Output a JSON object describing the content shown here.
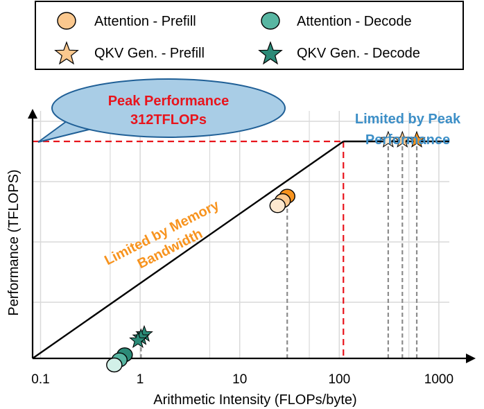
{
  "chart_data": {
    "type": "scatter",
    "subtype": "roofline",
    "xlabel": "Arithmetic Intensity (FLOPs/byte)",
    "ylabel": "Performance (TFLOPS)",
    "xscale": "log",
    "yscale": "log",
    "xlim": [
      0.05,
      1000
    ],
    "x_ticks": [
      "0.1",
      "1",
      "10",
      "100",
      "1000"
    ],
    "grid": true,
    "legend_placement": "top",
    "roofline": {
      "peak_label": "Peak Performance 312TFLOPs",
      "peak_label_lines": [
        "Peak Performance",
        "312TFLOPs"
      ],
      "ridge_x": 110,
      "line_color": "#000000",
      "dashed_color": "#e8141c"
    },
    "annotations": {
      "memory_lines": [
        "Limited by Memory",
        "Bandwidth"
      ],
      "peak_lines": [
        "Limited by Peak",
        "Performance"
      ]
    },
    "series": [
      {
        "name": "Attention - Prefill",
        "marker": "circle",
        "colors": [
          "#fde8cf",
          "#fbc88e",
          "#f7931e"
        ],
        "x": [
          24,
          27,
          30
        ]
      },
      {
        "name": "Attention - Decode",
        "marker": "circle",
        "colors": [
          "#d2f0e8",
          "#58b6a2",
          "#2b8a77"
        ],
        "x": [
          0.55,
          0.62,
          0.7
        ]
      },
      {
        "name": "QKV Gen. - Prefill",
        "marker": "star",
        "colors": [
          "#fde8cf",
          "#fbc88e",
          "#f7931e"
        ],
        "x": [
          310,
          430,
          600
        ]
      },
      {
        "name": "QKV Gen. - Decode",
        "marker": "star",
        "colors": [
          "#2b8a77",
          "#2b8a77",
          "#2b8a77"
        ],
        "x": [
          0.95,
          1.02,
          1.1
        ]
      }
    ],
    "colors": {
      "axis": "#000000",
      "grid": "#d9d9d9",
      "guide": "#8c8c8c",
      "bubble_fill": "#a9cde6",
      "bubble_stroke": "#1f5f96"
    }
  }
}
